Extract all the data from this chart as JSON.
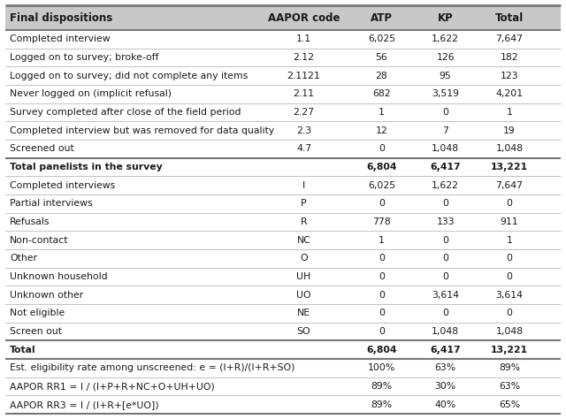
{
  "header": [
    "Final dispositions",
    "AAPOR code",
    "ATP",
    "KP",
    "Total"
  ],
  "rows": [
    {
      "label": "Completed interview",
      "code": "1.1",
      "atp": "6,025",
      "kp": "1,622",
      "total": "7,647",
      "bold": false,
      "separator_above": false
    },
    {
      "label": "Logged on to survey; broke-off",
      "code": "2.12",
      "atp": "56",
      "kp": "126",
      "total": "182",
      "bold": false,
      "separator_above": false
    },
    {
      "label": "Logged on to survey; did not complete any items",
      "code": "2.1121",
      "atp": "28",
      "kp": "95",
      "total": "123",
      "bold": false,
      "separator_above": false
    },
    {
      "label": "Never logged on (implicit refusal)",
      "code": "2.11",
      "atp": "682",
      "kp": "3,519",
      "total": "4,201",
      "bold": false,
      "separator_above": false
    },
    {
      "label": "Survey completed after close of the field period",
      "code": "2.27",
      "atp": "1",
      "kp": "0",
      "total": "1",
      "bold": false,
      "separator_above": false
    },
    {
      "label": "Completed interview but was removed for data quality",
      "code": "2.3",
      "atp": "12",
      "kp": "7",
      "total": "19",
      "bold": false,
      "separator_above": false
    },
    {
      "label": "Screened out",
      "code": "4.7",
      "atp": "0",
      "kp": "1,048",
      "total": "1,048",
      "bold": false,
      "separator_above": false
    },
    {
      "label": "Total panelists in the survey",
      "code": "",
      "atp": "6,804",
      "kp": "6,417",
      "total": "13,221",
      "bold": true,
      "separator_above": true
    },
    {
      "label": "Completed interviews",
      "code": "I",
      "atp": "6,025",
      "kp": "1,622",
      "total": "7,647",
      "bold": false,
      "separator_above": false
    },
    {
      "label": "Partial interviews",
      "code": "P",
      "atp": "0",
      "kp": "0",
      "total": "0",
      "bold": false,
      "separator_above": false
    },
    {
      "label": "Refusals",
      "code": "R",
      "atp": "778",
      "kp": "133",
      "total": "911",
      "bold": false,
      "separator_above": false
    },
    {
      "label": "Non-contact",
      "code": "NC",
      "atp": "1",
      "kp": "0",
      "total": "1",
      "bold": false,
      "separator_above": false
    },
    {
      "label": "Other",
      "code": "O",
      "atp": "0",
      "kp": "0",
      "total": "0",
      "bold": false,
      "separator_above": false
    },
    {
      "label": "Unknown household",
      "code": "UH",
      "atp": "0",
      "kp": "0",
      "total": "0",
      "bold": false,
      "separator_above": false
    },
    {
      "label": "Unknown other",
      "code": "UO",
      "atp": "0",
      "kp": "3,614",
      "total": "3,614",
      "bold": false,
      "separator_above": false
    },
    {
      "label": "Not eligible",
      "code": "NE",
      "atp": "0",
      "kp": "0",
      "total": "0",
      "bold": false,
      "separator_above": false
    },
    {
      "label": "Screen out",
      "code": "SO",
      "atp": "0",
      "kp": "1,048",
      "total": "1,048",
      "bold": false,
      "separator_above": false
    },
    {
      "label": "Total",
      "code": "",
      "atp": "6,804",
      "kp": "6,417",
      "total": "13,221",
      "bold": true,
      "separator_above": true
    },
    {
      "label": "Est. eligibility rate among unscreened: e = (I+R)/(I+R+SO)",
      "code": "",
      "atp": "100%",
      "kp": "63%",
      "total": "89%",
      "bold": false,
      "separator_above": true
    },
    {
      "label": "AAPOR RR1 = I / (I+P+R+NC+O+UH+UO)",
      "code": "",
      "atp": "89%",
      "kp": "30%",
      "total": "63%",
      "bold": false,
      "separator_above": false
    },
    {
      "label": "AAPOR RR3 = I / (I+R+[e*UO])",
      "code": "",
      "atp": "89%",
      "kp": "40%",
      "total": "65%",
      "bold": false,
      "separator_above": false
    }
  ],
  "header_bg_color": "#c8c8c8",
  "text_color": "#1a1a1a",
  "border_color": "#777777",
  "thin_line_color": "#aaaaaa",
  "font_size": 7.8,
  "header_font_size": 8.5,
  "fig_width": 6.4,
  "fig_height": 4.74,
  "dpi": 100
}
